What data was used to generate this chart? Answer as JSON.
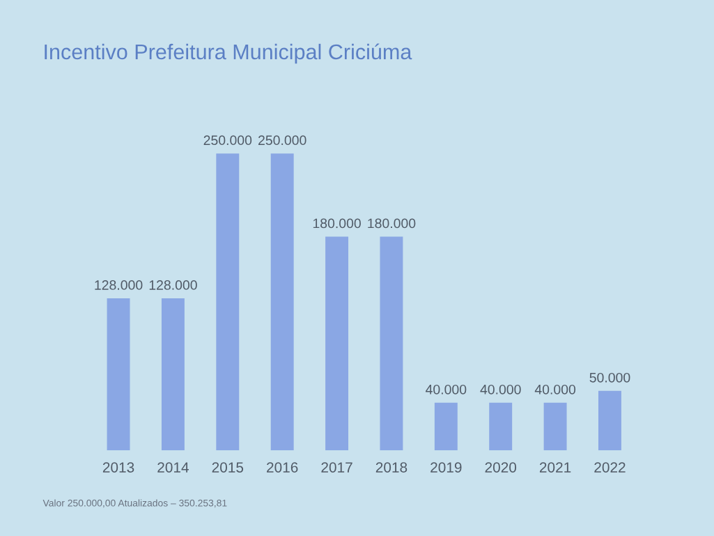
{
  "chart_data": {
    "type": "bar",
    "title": "Incentivo Prefeitura Municipal Criciúma",
    "categories": [
      "2013",
      "2014",
      "2015",
      "2016",
      "2017",
      "2018",
      "2019",
      "2020",
      "2021",
      "2022"
    ],
    "values": [
      128000,
      128000,
      250000,
      250000,
      180000,
      180000,
      40000,
      40000,
      40000,
      50000
    ],
    "value_labels": [
      "128.000",
      "128.000",
      "250.000",
      "250.000",
      "180.000",
      "180.000",
      "40.000",
      "40.000",
      "40.000",
      "50.000"
    ],
    "color": "#8aa7e4",
    "grid": false,
    "legend": false,
    "annotations": [
      "Valor 250.000,00 Atualizados – 350.253,81"
    ]
  }
}
